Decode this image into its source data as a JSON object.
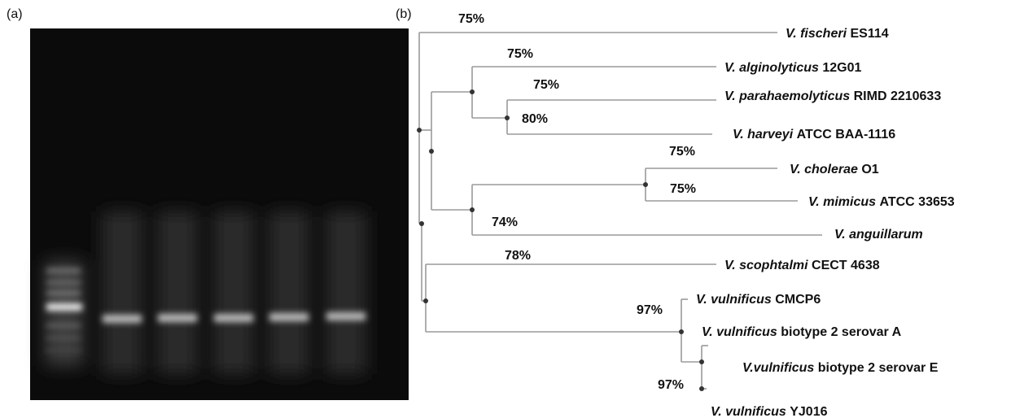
{
  "panels": {
    "a": "(a)",
    "b": "(b)"
  },
  "tree": {
    "leaves": [
      {
        "species": "V. fischeri",
        "strain": "ES114"
      },
      {
        "species": "V. alginolyticus",
        "strain": "12G01"
      },
      {
        "species": "V. parahaemolyticus",
        "strain": "RIMD 2210633"
      },
      {
        "species": "V. harveyi",
        "strain": "ATCC BAA-1116"
      },
      {
        "species": "V. cholerae",
        "strain": "O1"
      },
      {
        "species": "V. mimicus",
        "strain": "ATCC 33653"
      },
      {
        "species": "V. anguillarum",
        "strain": ""
      },
      {
        "species": "V. scophtalmi",
        "strain": "CECT 4638"
      },
      {
        "species": "V. vulnificus",
        "strain": "CMCP6"
      },
      {
        "species": "V. vulnificus",
        "strain": "biotype 2 serovar A"
      },
      {
        "species": "V.vulnificus",
        "strain": "biotype 2 serovar E"
      },
      {
        "species": "V. vulnificus",
        "strain": "YJ016"
      }
    ],
    "supports": [
      "75%",
      "75%",
      "75%",
      "80%",
      "75%",
      "75%",
      "74%",
      "78%",
      "97%",
      "97%"
    ]
  }
}
